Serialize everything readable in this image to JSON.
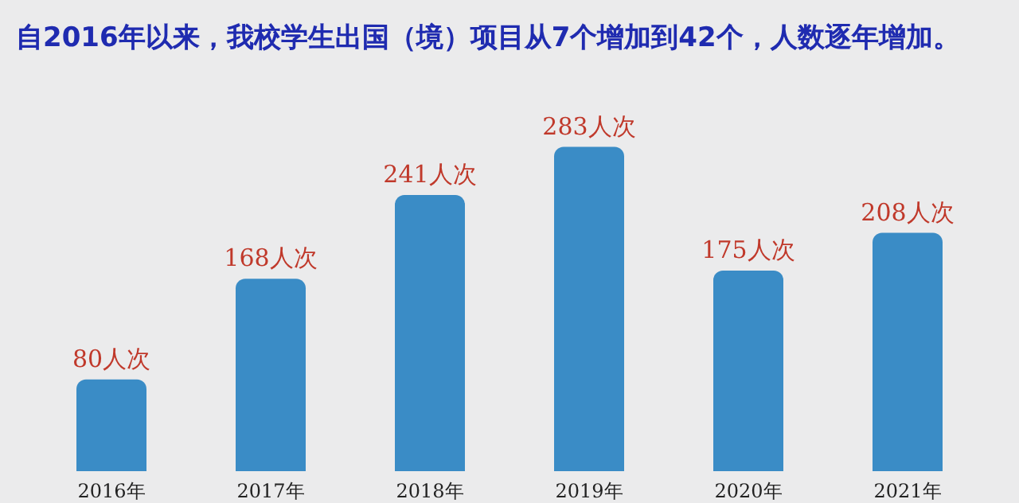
{
  "chart_data": {
    "type": "bar",
    "title": "自2016年以来，我校学生出国（境）项目从7个增加到42个，人数逐年增加。",
    "categories": [
      "2016年",
      "2017年",
      "2018年",
      "2019年",
      "2020年",
      "2021年"
    ],
    "values": [
      80,
      168,
      241,
      283,
      175,
      208
    ],
    "value_labels": [
      "80人次",
      "168人次",
      "241人次",
      "283人次",
      "175人次",
      "208人次"
    ],
    "color": "#3a8cc6"
  }
}
